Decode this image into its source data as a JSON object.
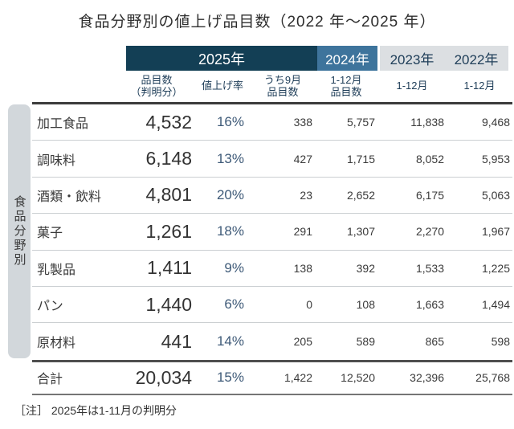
{
  "title": "食品分野別の値上げ品目数（2022 年～2025 年）",
  "side_label": "食品分野別",
  "note": "［注］ 2025年は1-11月の判明分",
  "colors": {
    "year2025_bg": "#133f55",
    "year2024_bg": "#3e749c",
    "year_old_bg": "#dcdfe2",
    "navy_text": "#1e3d58",
    "rate_text": "#3e5a78",
    "sidetab_bg": "#d2d7db",
    "line": "#cbcfd2"
  },
  "header": {
    "year_2025": "2025年",
    "year_2024": "2024年",
    "year_2023": "2023年",
    "year_2022": "2022年",
    "sub": {
      "col1_line1": "品目数",
      "col1_line2": "（判明分）",
      "col2": "値上げ率",
      "col3_line1": "うち9月",
      "col3_line2": "品目数",
      "col4_line1": "1-12月",
      "col4_line2": "品目数",
      "col5": "1-12月",
      "col6": "1-12月"
    }
  },
  "rows": [
    {
      "category": "加工食品",
      "count2025": "4,532",
      "rate": "16%",
      "sep2025": "338",
      "y2024": "5,757",
      "y2023": "11,838",
      "y2022": "9,468"
    },
    {
      "category": "調味料",
      "count2025": "6,148",
      "rate": "13%",
      "sep2025": "427",
      "y2024": "1,715",
      "y2023": "8,052",
      "y2022": "5,953"
    },
    {
      "category": "酒類・飲料",
      "count2025": "4,801",
      "rate": "20%",
      "sep2025": "23",
      "y2024": "2,652",
      "y2023": "6,175",
      "y2022": "5,063"
    },
    {
      "category": "菓子",
      "count2025": "1,261",
      "rate": "18%",
      "sep2025": "291",
      "y2024": "1,307",
      "y2023": "2,270",
      "y2022": "1,967"
    },
    {
      "category": "乳製品",
      "count2025": "1,411",
      "rate": "9%",
      "sep2025": "138",
      "y2024": "392",
      "y2023": "1,533",
      "y2022": "1,225"
    },
    {
      "category": "パン",
      "count2025": "1,440",
      "rate": "6%",
      "sep2025": "0",
      "y2024": "108",
      "y2023": "1,663",
      "y2022": "1,494"
    },
    {
      "category": "原材料",
      "count2025": "441",
      "rate": "14%",
      "sep2025": "205",
      "y2024": "589",
      "y2023": "865",
      "y2022": "598"
    }
  ],
  "total": {
    "category": "合計",
    "count2025": "20,034",
    "rate": "15%",
    "sep2025": "1,422",
    "y2024": "12,520",
    "y2023": "32,396",
    "y2022": "25,768"
  },
  "chart_data": {
    "type": "table",
    "title": "食品分野別の値上げ品目数（2022 年～2025 年）",
    "row_axis_label": "食品分野別",
    "columns": [
      "2025年 品目数（判明分）",
      "2025年 値上げ率",
      "2025年 うち9月品目数",
      "2024年 1-12月品目数",
      "2023年 1-12月",
      "2022年 1-12月"
    ],
    "categories": [
      "加工食品",
      "調味料",
      "酒類・飲料",
      "菓子",
      "乳製品",
      "パン",
      "原材料",
      "合計"
    ],
    "rows": [
      [
        4532,
        "16%",
        338,
        5757,
        11838,
        9468
      ],
      [
        6148,
        "13%",
        427,
        1715,
        8052,
        5953
      ],
      [
        4801,
        "20%",
        23,
        2652,
        6175,
        5063
      ],
      [
        1261,
        "18%",
        291,
        1307,
        2270,
        1967
      ],
      [
        1411,
        "9%",
        138,
        392,
        1533,
        1225
      ],
      [
        1440,
        "6%",
        0,
        108,
        1663,
        1494
      ],
      [
        441,
        "14%",
        205,
        589,
        865,
        598
      ],
      [
        20034,
        "15%",
        1422,
        12520,
        32396,
        25768
      ]
    ],
    "note": "2025年は1-11月の判明分"
  }
}
